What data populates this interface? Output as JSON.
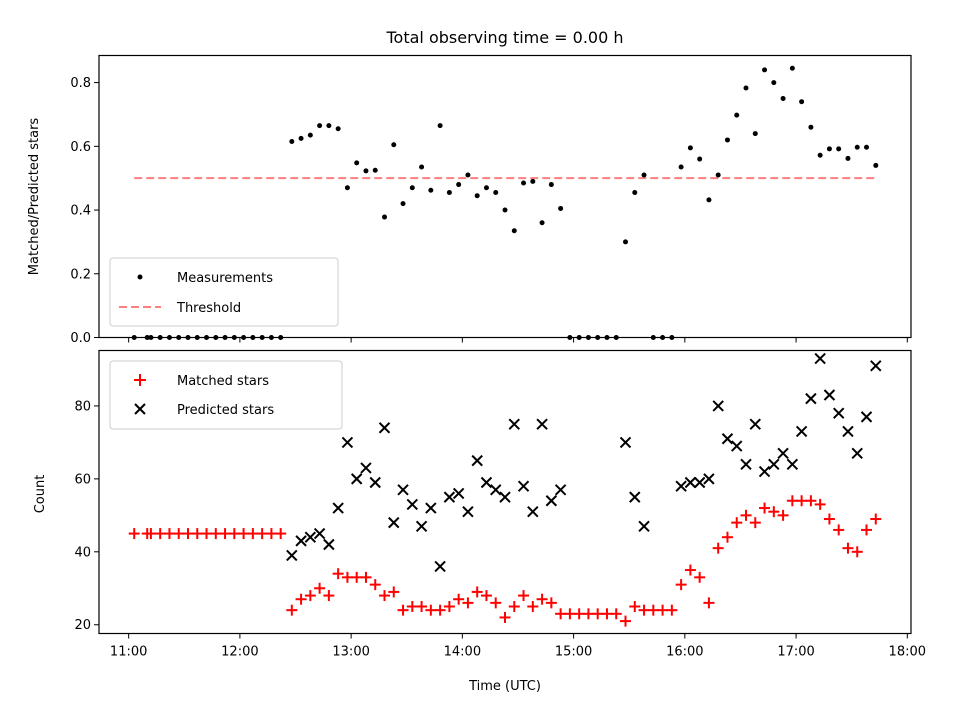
{
  "chart_data": [
    {
      "type": "scatter",
      "title": "Total observing time = 0.00 h",
      "ylabel": "Matched/Predicted stars",
      "ylim": [
        0,
        0.885
      ],
      "yticks": [
        0.0,
        0.2,
        0.4,
        0.6,
        0.8
      ],
      "ytick_labels": [
        "0.0",
        "0.2",
        "0.4",
        "0.6",
        "0.8"
      ],
      "grid": false,
      "legend_position": "lower-left",
      "legend": [
        "Measurements",
        "Threshold"
      ],
      "series": [
        {
          "name": "Measurements",
          "marker": "dot",
          "color": "#000000",
          "points": [
            [
              "11:03",
              0
            ],
            [
              "11:10",
              0
            ],
            [
              "11:12",
              0
            ],
            [
              "11:17",
              0
            ],
            [
              "11:22",
              0
            ],
            [
              "11:27",
              0
            ],
            [
              "11:32",
              0
            ],
            [
              "11:37",
              0
            ],
            [
              "11:42",
              0
            ],
            [
              "11:47",
              0
            ],
            [
              "11:52",
              0
            ],
            [
              "11:57",
              0
            ],
            [
              "12:02",
              0
            ],
            [
              "12:07",
              0
            ],
            [
              "12:12",
              0
            ],
            [
              "12:17",
              0
            ],
            [
              "12:22",
              0
            ],
            [
              "12:28",
              0.615
            ],
            [
              "12:33",
              0.625
            ],
            [
              "12:38",
              0.635
            ],
            [
              "12:43",
              0.665
            ],
            [
              "12:48",
              0.665
            ],
            [
              "12:53",
              0.655
            ],
            [
              "12:58",
              0.47
            ],
            [
              "13:03",
              0.548
            ],
            [
              "13:08",
              0.523
            ],
            [
              "13:13",
              0.525
            ],
            [
              "13:18",
              0.378
            ],
            [
              "13:23",
              0.605
            ],
            [
              "13:28",
              0.42
            ],
            [
              "13:33",
              0.47
            ],
            [
              "13:38",
              0.535
            ],
            [
              "13:43",
              0.462
            ],
            [
              "13:48",
              0.665
            ],
            [
              "13:53",
              0.455
            ],
            [
              "13:58",
              0.48
            ],
            [
              "14:03",
              0.51
            ],
            [
              "14:08",
              0.445
            ],
            [
              "14:13",
              0.47
            ],
            [
              "14:18",
              0.455
            ],
            [
              "14:23",
              0.4
            ],
            [
              "14:28",
              0.335
            ],
            [
              "14:33",
              0.485
            ],
            [
              "14:38",
              0.49
            ],
            [
              "14:43",
              0.36
            ],
            [
              "14:48",
              0.48
            ],
            [
              "14:53",
              0.405
            ],
            [
              "14:58",
              0
            ],
            [
              "15:03",
              0
            ],
            [
              "15:08",
              0
            ],
            [
              "15:13",
              0
            ],
            [
              "15:18",
              0
            ],
            [
              "15:23",
              0
            ],
            [
              "15:28",
              0.3
            ],
            [
              "15:33",
              0.455
            ],
            [
              "15:38",
              0.51
            ],
            [
              "15:43",
              0
            ],
            [
              "15:48",
              0
            ],
            [
              "15:53",
              0
            ],
            [
              "15:58",
              0.535
            ],
            [
              "16:03",
              0.595
            ],
            [
              "16:08",
              0.56
            ],
            [
              "16:13",
              0.432
            ],
            [
              "16:18",
              0.51
            ],
            [
              "16:23",
              0.62
            ],
            [
              "16:28",
              0.698
            ],
            [
              "16:33",
              0.783
            ],
            [
              "16:38",
              0.64
            ],
            [
              "16:43",
              0.84
            ],
            [
              "16:48",
              0.8
            ],
            [
              "16:53",
              0.75
            ],
            [
              "16:58",
              0.845
            ],
            [
              "17:03",
              0.74
            ],
            [
              "17:08",
              0.66
            ],
            [
              "17:13",
              0.572
            ],
            [
              "17:18",
              0.592
            ],
            [
              "17:23",
              0.592
            ],
            [
              "17:28",
              0.562
            ],
            [
              "17:33",
              0.597
            ],
            [
              "17:38",
              0.597
            ],
            [
              "17:43",
              0.54
            ]
          ]
        },
        {
          "name": "Threshold",
          "marker": "dashed-line",
          "color": "#ff7f7f",
          "points": [
            [
              "11:03",
              0.5
            ],
            [
              "17:43",
              0.5
            ]
          ]
        }
      ]
    },
    {
      "type": "scatter",
      "xlabel": "Time (UTC)",
      "ylabel": "Count",
      "ylim": [
        17.6,
        95.2
      ],
      "yticks": [
        20,
        40,
        60,
        80
      ],
      "ytick_labels": [
        "20",
        "40",
        "60",
        "80"
      ],
      "xlim": [
        "10:44",
        "18:02"
      ],
      "xticks": [
        "11:00",
        "12:00",
        "13:00",
        "14:00",
        "15:00",
        "16:00",
        "17:00",
        "18:00"
      ],
      "grid": false,
      "legend_position": "upper-left",
      "legend": [
        "Matched stars",
        "Predicted stars"
      ],
      "series": [
        {
          "name": "Matched stars",
          "marker": "plus",
          "color": "#ff0000",
          "points": [
            [
              "11:03",
              45
            ],
            [
              "11:10",
              45
            ],
            [
              "11:12",
              45
            ],
            [
              "11:17",
              45
            ],
            [
              "11:22",
              45
            ],
            [
              "11:27",
              45
            ],
            [
              "11:32",
              45
            ],
            [
              "11:37",
              45
            ],
            [
              "11:42",
              45
            ],
            [
              "11:47",
              45
            ],
            [
              "11:52",
              45
            ],
            [
              "11:57",
              45
            ],
            [
              "12:02",
              45
            ],
            [
              "12:07",
              45
            ],
            [
              "12:12",
              45
            ],
            [
              "12:17",
              45
            ],
            [
              "12:22",
              45
            ],
            [
              "12:28",
              24
            ],
            [
              "12:33",
              27
            ],
            [
              "12:38",
              28
            ],
            [
              "12:43",
              30
            ],
            [
              "12:48",
              28
            ],
            [
              "12:53",
              34
            ],
            [
              "12:58",
              33
            ],
            [
              "13:03",
              33
            ],
            [
              "13:08",
              33
            ],
            [
              "13:13",
              31
            ],
            [
              "13:18",
              28
            ],
            [
              "13:23",
              29
            ],
            [
              "13:28",
              24
            ],
            [
              "13:33",
              25
            ],
            [
              "13:38",
              25
            ],
            [
              "13:43",
              24
            ],
            [
              "13:48",
              24
            ],
            [
              "13:53",
              25
            ],
            [
              "13:58",
              27
            ],
            [
              "14:03",
              26
            ],
            [
              "14:08",
              29
            ],
            [
              "14:13",
              28
            ],
            [
              "14:18",
              26
            ],
            [
              "14:23",
              22
            ],
            [
              "14:28",
              25
            ],
            [
              "14:33",
              28
            ],
            [
              "14:38",
              25
            ],
            [
              "14:43",
              27
            ],
            [
              "14:48",
              26
            ],
            [
              "14:53",
              23
            ],
            [
              "14:58",
              23
            ],
            [
              "15:03",
              23
            ],
            [
              "15:08",
              23
            ],
            [
              "15:13",
              23
            ],
            [
              "15:18",
              23
            ],
            [
              "15:23",
              23
            ],
            [
              "15:28",
              21
            ],
            [
              "15:33",
              25
            ],
            [
              "15:38",
              24
            ],
            [
              "15:43",
              24
            ],
            [
              "15:48",
              24
            ],
            [
              "15:53",
              24
            ],
            [
              "15:58",
              31
            ],
            [
              "16:03",
              35
            ],
            [
              "16:08",
              33
            ],
            [
              "16:13",
              26
            ],
            [
              "16:18",
              41
            ],
            [
              "16:23",
              44
            ],
            [
              "16:28",
              48
            ],
            [
              "16:33",
              50
            ],
            [
              "16:38",
              48
            ],
            [
              "16:43",
              52
            ],
            [
              "16:48",
              51
            ],
            [
              "16:53",
              50
            ],
            [
              "16:58",
              54
            ],
            [
              "17:03",
              54
            ],
            [
              "17:08",
              54
            ],
            [
              "17:13",
              53
            ],
            [
              "17:18",
              49
            ],
            [
              "17:23",
              46
            ],
            [
              "17:28",
              41
            ],
            [
              "17:33",
              40
            ],
            [
              "17:38",
              46
            ],
            [
              "17:43",
              49
            ]
          ]
        },
        {
          "name": "Predicted stars",
          "marker": "x",
          "color": "#000000",
          "points": [
            [
              "12:28",
              39
            ],
            [
              "12:33",
              43
            ],
            [
              "12:38",
              44
            ],
            [
              "12:43",
              45
            ],
            [
              "12:48",
              42
            ],
            [
              "12:53",
              52
            ],
            [
              "12:58",
              70
            ],
            [
              "13:03",
              60
            ],
            [
              "13:08",
              63
            ],
            [
              "13:13",
              59
            ],
            [
              "13:18",
              74
            ],
            [
              "13:23",
              48
            ],
            [
              "13:28",
              57
            ],
            [
              "13:33",
              53
            ],
            [
              "13:38",
              47
            ],
            [
              "13:43",
              52
            ],
            [
              "13:48",
              36
            ],
            [
              "13:53",
              55
            ],
            [
              "13:58",
              56
            ],
            [
              "14:03",
              51
            ],
            [
              "14:08",
              65
            ],
            [
              "14:13",
              59
            ],
            [
              "14:18",
              57
            ],
            [
              "14:23",
              55
            ],
            [
              "14:28",
              75
            ],
            [
              "14:33",
              58
            ],
            [
              "14:38",
              51
            ],
            [
              "14:43",
              75
            ],
            [
              "14:48",
              54
            ],
            [
              "14:53",
              57
            ],
            [
              "15:28",
              70
            ],
            [
              "15:33",
              55
            ],
            [
              "15:38",
              47
            ],
            [
              "15:58",
              58
            ],
            [
              "16:03",
              59
            ],
            [
              "16:08",
              59
            ],
            [
              "16:13",
              60
            ],
            [
              "16:18",
              80
            ],
            [
              "16:23",
              71
            ],
            [
              "16:28",
              69
            ],
            [
              "16:33",
              64
            ],
            [
              "16:38",
              75
            ],
            [
              "16:43",
              62
            ],
            [
              "16:48",
              64
            ],
            [
              "16:53",
              67
            ],
            [
              "16:58",
              64
            ],
            [
              "17:03",
              73
            ],
            [
              "17:08",
              82
            ],
            [
              "17:13",
              93
            ],
            [
              "17:18",
              83
            ],
            [
              "17:23",
              78
            ],
            [
              "17:28",
              73
            ],
            [
              "17:33",
              67
            ],
            [
              "17:38",
              77
            ],
            [
              "17:43",
              91
            ]
          ]
        }
      ]
    }
  ]
}
